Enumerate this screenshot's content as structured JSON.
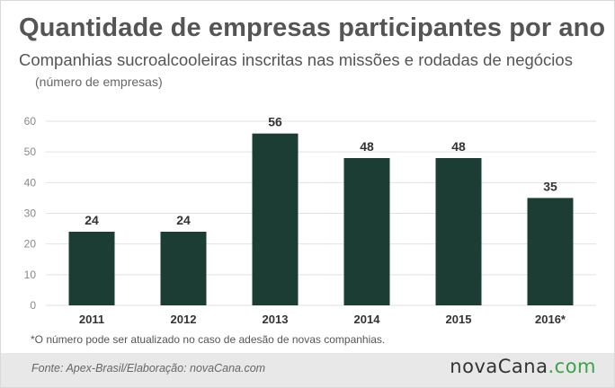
{
  "header": {
    "title": "Quantidade de empresas participantes por ano",
    "subtitle": "Companhias sucroalcooleiras inscritas nas missões e rodadas de negócios",
    "units": "(número de empresas)"
  },
  "chart_data": {
    "type": "bar",
    "categories": [
      "2011",
      "2012",
      "2013",
      "2014",
      "2015",
      "2016*"
    ],
    "values": [
      24,
      24,
      56,
      48,
      48,
      35
    ],
    "data_labels": [
      "24",
      "24",
      "56",
      "48",
      "48",
      "35"
    ],
    "title": "Quantidade de empresas participantes por ano",
    "subtitle": "Companhias sucroalcooleiras inscritas nas missões e rodadas de negócios",
    "ylabel": "(número de empresas)",
    "xlabel": "",
    "ylim": [
      0,
      60
    ],
    "yticks": [
      0,
      10,
      20,
      30,
      40,
      50,
      60
    ],
    "grid": true,
    "legend": "none",
    "bar_color": "#1c3d33",
    "grid_color": "#e2e2e2"
  },
  "footnote": "*O número pode ser atualizado no caso de adesão de novas companhias.",
  "footer": {
    "source": "Fonte: Apex-Brasil/Elaboração: novaCana.com",
    "brand_main": "novaCana",
    "brand_tld": ".com",
    "brand_tld_color": "#3aa24a",
    "background_color": "#e8e8e8"
  }
}
